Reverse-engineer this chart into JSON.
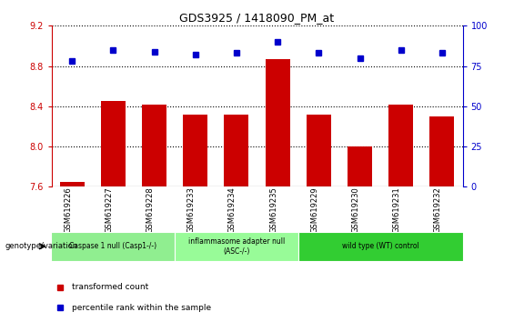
{
  "title": "GDS3925 / 1418090_PM_at",
  "samples": [
    "GSM619226",
    "GSM619227",
    "GSM619228",
    "GSM619233",
    "GSM619234",
    "GSM619235",
    "GSM619229",
    "GSM619230",
    "GSM619231",
    "GSM619232"
  ],
  "red_values": [
    7.65,
    8.45,
    8.42,
    8.32,
    8.32,
    8.87,
    8.32,
    8.0,
    8.42,
    8.3
  ],
  "blue_values": [
    78,
    85,
    84,
    82,
    83,
    90,
    83,
    80,
    85,
    83
  ],
  "ylim_left": [
    7.6,
    9.2
  ],
  "ylim_right": [
    0,
    100
  ],
  "yticks_left": [
    7.6,
    8.0,
    8.4,
    8.8,
    9.2
  ],
  "yticks_right": [
    0,
    25,
    50,
    75,
    100
  ],
  "groups": [
    {
      "label": "Caspase 1 null (Casp1-/-)",
      "start": 0,
      "end": 3,
      "color": "#90EE90"
    },
    {
      "label": "inflammasome adapter null\n(ASC-/-)",
      "start": 3,
      "end": 6,
      "color": "#98FB98"
    },
    {
      "label": "wild type (WT) control",
      "start": 6,
      "end": 10,
      "color": "#32CD32"
    }
  ],
  "bar_color": "#CC0000",
  "dot_color": "#0000CC",
  "bg_color": "#FFFFFF",
  "left_axis_color": "#CC0000",
  "right_axis_color": "#0000CC"
}
